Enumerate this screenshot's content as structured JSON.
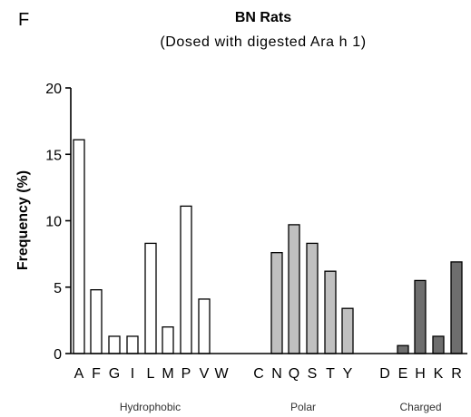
{
  "panel_label": "F",
  "chart_data": {
    "type": "bar",
    "title": "BN Rats",
    "subtitle": "(Dosed with digested Ara h 1)",
    "xlabel": "",
    "ylabel": "Frequency (%)",
    "ylim": [
      0,
      20
    ],
    "yticks": [
      0,
      5,
      10,
      15,
      20
    ],
    "grid": false,
    "categories": [
      "A",
      "F",
      "G",
      "I",
      "L",
      "M",
      "P",
      "V",
      "W",
      "C",
      "N",
      "Q",
      "S",
      "T",
      "Y",
      "D",
      "E",
      "H",
      "K",
      "R"
    ],
    "values": [
      16.1,
      4.8,
      1.3,
      1.3,
      8.3,
      2.0,
      11.1,
      4.1,
      0,
      0,
      7.6,
      9.7,
      8.3,
      6.2,
      3.4,
      0,
      0.6,
      5.5,
      1.3,
      6.9
    ],
    "groups": [
      {
        "label": "Hydrophobic",
        "categories": [
          "A",
          "F",
          "G",
          "I",
          "L",
          "M",
          "P",
          "V",
          "W"
        ],
        "color": "#ffffff"
      },
      {
        "label": "Polar",
        "categories": [
          "C",
          "N",
          "Q",
          "S",
          "T",
          "Y"
        ],
        "color": "#c0c0c0"
      },
      {
        "label": "Charged",
        "categories": [
          "D",
          "E",
          "H",
          "K",
          "R"
        ],
        "color": "#6e6e6e"
      }
    ]
  }
}
